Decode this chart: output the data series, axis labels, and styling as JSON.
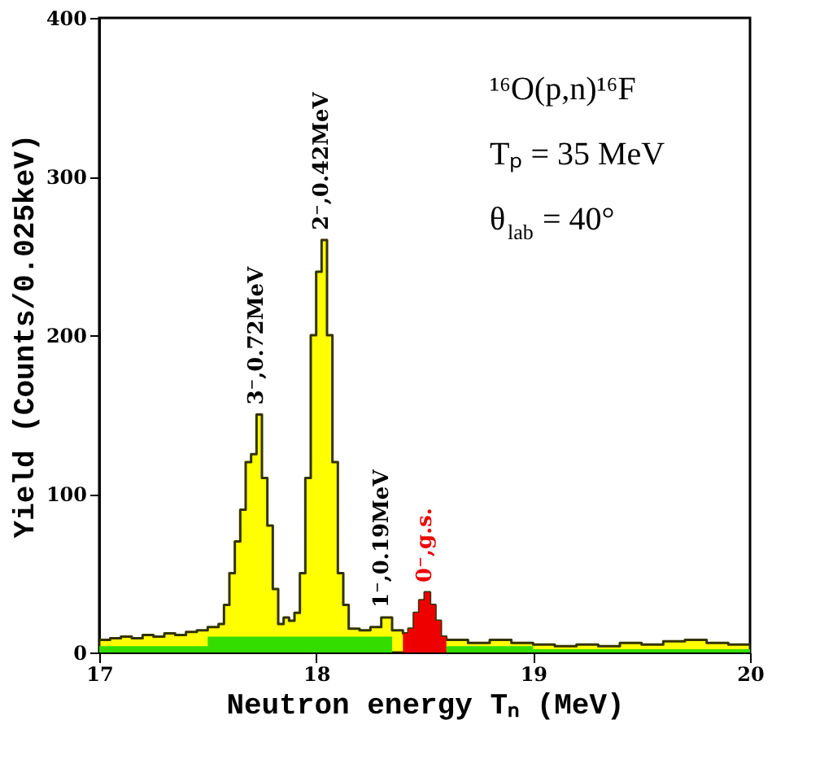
{
  "chart_data": {
    "type": "area",
    "xlabel": "Neutron energy Tₙ (MeV)",
    "ylabel": "Yield (Counts/0.025keV)",
    "xlim": [
      17,
      20
    ],
    "xticks": [
      17,
      18,
      19,
      20
    ],
    "ylim": [
      0,
      400
    ],
    "yticks": [
      0,
      100,
      200,
      300,
      400
    ],
    "series": [
      {
        "color": "#ffff00",
        "x": [
          17.0,
          17.05,
          17.1,
          17.15,
          17.2,
          17.25,
          17.3,
          17.35,
          17.4,
          17.45,
          17.5,
          17.55,
          17.575,
          17.6,
          17.625,
          17.65,
          17.675,
          17.7,
          17.725,
          17.75,
          17.775,
          17.8,
          17.825,
          17.85,
          17.875,
          17.9,
          17.925,
          17.95,
          17.975,
          18.0,
          18.025,
          18.05,
          18.075,
          18.1,
          18.125,
          18.15,
          18.2,
          18.25,
          18.3,
          18.35,
          18.4,
          18.425,
          18.45,
          18.475,
          18.5,
          18.525,
          18.55,
          18.575,
          18.6,
          18.7,
          18.8,
          18.9,
          19.0,
          19.1,
          19.2,
          19.3,
          19.4,
          19.5,
          19.6,
          19.7,
          19.8,
          19.9,
          20.0
        ],
        "values": [
          8,
          9,
          10,
          9,
          11,
          10,
          12,
          11,
          13,
          14,
          16,
          18,
          30,
          50,
          70,
          90,
          120,
          125,
          150,
          110,
          80,
          40,
          18,
          22,
          20,
          25,
          50,
          110,
          200,
          240,
          260,
          200,
          120,
          50,
          30,
          15,
          14,
          16,
          22,
          14,
          12,
          15,
          25,
          33,
          38,
          30,
          20,
          10,
          8,
          6,
          8,
          6,
          5,
          4,
          5,
          4,
          6,
          5,
          7,
          8,
          6,
          5,
          5
        ]
      },
      {
        "color": "#33dd00",
        "x": [
          17.0,
          17.5,
          18.0,
          18.35,
          18.4,
          18.6,
          19.0,
          20.0
        ],
        "values": [
          4,
          10,
          10,
          10,
          null,
          4,
          2,
          2
        ]
      },
      {
        "color": "#ee0000",
        "x": [
          18.4,
          18.425,
          18.45,
          18.475,
          18.5,
          18.525,
          18.55,
          18.575,
          18.6
        ],
        "values": [
          12,
          15,
          25,
          33,
          38,
          30,
          20,
          10,
          8
        ]
      }
    ],
    "annotations": [
      {
        "text": "3⁻,0.72MeV",
        "x": 17.725,
        "y": 150
      },
      {
        "text": "2⁻,0.42MeV",
        "x": 18.025,
        "y": 260
      },
      {
        "text": "1⁻,0.19MeV",
        "x": 18.3,
        "y": 22
      },
      {
        "text": "0⁻,g.s.",
        "x": 18.5,
        "y": 38
      },
      "¹⁶O(p,n)¹⁶F",
      "Tₚ = 35 MeV",
      "θ$_{lab}$ = 40°"
    ]
  }
}
